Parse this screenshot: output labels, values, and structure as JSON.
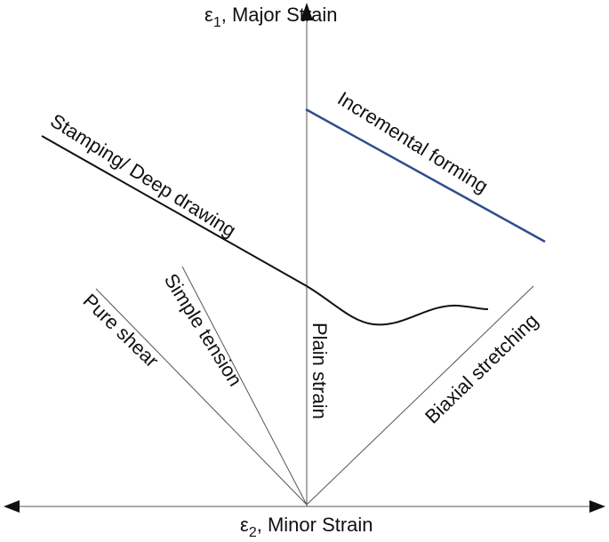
{
  "axes": {
    "y_label": {
      "symbol": "ε",
      "subscript": "1",
      "text": ", Major Strain"
    },
    "x_label": {
      "symbol": "ε",
      "subscript": "2",
      "text": ", Minor Strain"
    }
  },
  "labels": {
    "stamping": "Stamping/ Deep drawing",
    "incremental": "Incremental forming",
    "pure_shear": "Pure shear",
    "simple_tension": "Simple tension",
    "plain_strain": "Plain strain",
    "biaxial": "Biaxial stretching"
  }
}
